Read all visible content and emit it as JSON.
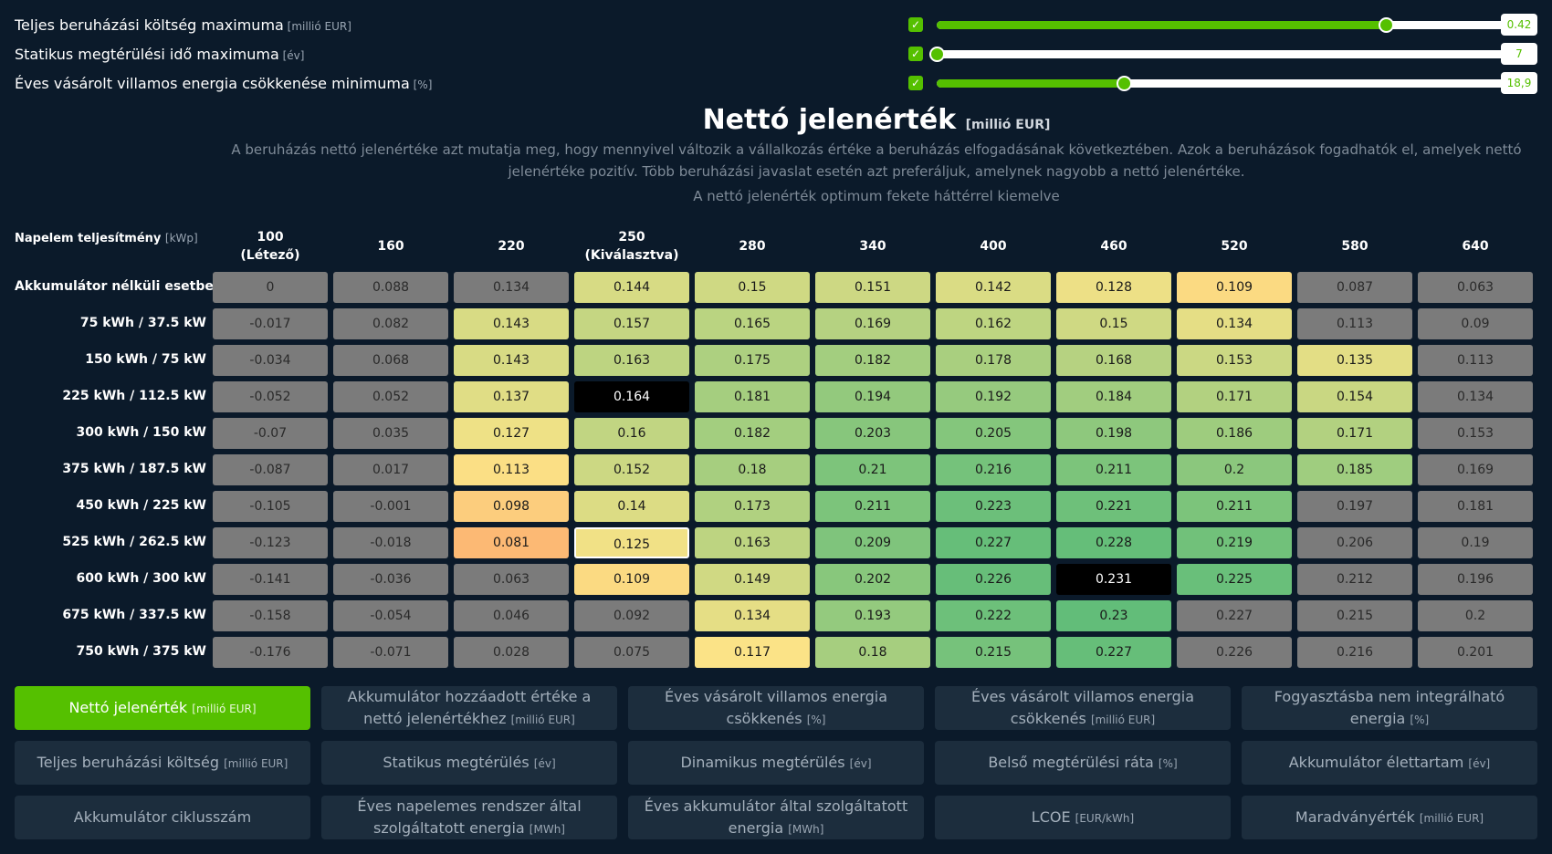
{
  "sliders": [
    {
      "label": "Teljes beruházási költség maximuma",
      "unit": "[millió EUR]",
      "checked": true,
      "fraction": 0.786,
      "value": "0.42"
    },
    {
      "label": "Statikus megtérülési idő maximuma",
      "unit": "[év]",
      "checked": true,
      "fraction": 0.0,
      "value": "7"
    },
    {
      "label": "Éves vásárolt villamos energia csökkenése minimuma",
      "unit": "[%]",
      "checked": true,
      "fraction": 0.327,
      "value": "18,9"
    }
  ],
  "heading": {
    "title": "Nettó jelenérték",
    "unit": "[millió EUR]",
    "description": "A beruházás nettó jelenértéke azt mutatja meg, hogy mennyivel változik a vállalkozás értéke a beruházás elfogadásának következtében. Azok a beruházások fogadhatók el, amelyek nettó jelenértéke pozitív. Több beruházási javaslat esetén azt preferáljuk, amelynek nagyobb a nettó jelenértéke.",
    "note": "A nettó jelenérték optimum fekete háttérrel kiemelve"
  },
  "grid": {
    "axis_label": "Napelem teljesítmény",
    "axis_unit": "[kWp]",
    "columns": [
      {
        "top": "100",
        "bottom": "(Létező)"
      },
      {
        "top": "160",
        "bottom": ""
      },
      {
        "top": "220",
        "bottom": ""
      },
      {
        "top": "250",
        "bottom": "(Kiválasztva)"
      },
      {
        "top": "280",
        "bottom": ""
      },
      {
        "top": "340",
        "bottom": ""
      },
      {
        "top": "400",
        "bottom": ""
      },
      {
        "top": "460",
        "bottom": ""
      },
      {
        "top": "520",
        "bottom": ""
      },
      {
        "top": "580",
        "bottom": ""
      },
      {
        "top": "640",
        "bottom": ""
      }
    ],
    "rows": [
      {
        "label": "Akkumulátor nélküli esetben",
        "values": [
          "0",
          "0.088",
          "0.134",
          "0.144",
          "0.15",
          "0.151",
          "0.142",
          "0.128",
          "0.109",
          "0.087",
          "0.063"
        ]
      },
      {
        "label": "75 kWh / 37.5 kW",
        "values": [
          "-0.017",
          "0.082",
          "0.143",
          "0.157",
          "0.165",
          "0.169",
          "0.162",
          "0.15",
          "0.134",
          "0.113",
          "0.09"
        ]
      },
      {
        "label": "150 kWh / 75 kW",
        "values": [
          "-0.034",
          "0.068",
          "0.143",
          "0.163",
          "0.175",
          "0.182",
          "0.178",
          "0.168",
          "0.153",
          "0.135",
          "0.113"
        ]
      },
      {
        "label": "225 kWh / 112.5 kW",
        "values": [
          "-0.052",
          "0.052",
          "0.137",
          "0.164",
          "0.181",
          "0.194",
          "0.192",
          "0.184",
          "0.171",
          "0.154",
          "0.134"
        ]
      },
      {
        "label": "300 kWh / 150 kW",
        "values": [
          "-0.07",
          "0.035",
          "0.127",
          "0.16",
          "0.182",
          "0.203",
          "0.205",
          "0.198",
          "0.186",
          "0.171",
          "0.153"
        ]
      },
      {
        "label": "375 kWh / 187.5 kW",
        "values": [
          "-0.087",
          "0.017",
          "0.113",
          "0.152",
          "0.18",
          "0.21",
          "0.216",
          "0.211",
          "0.2",
          "0.185",
          "0.169"
        ]
      },
      {
        "label": "450 kWh / 225 kW",
        "values": [
          "-0.105",
          "-0.001",
          "0.098",
          "0.14",
          "0.173",
          "0.211",
          "0.223",
          "0.221",
          "0.211",
          "0.197",
          "0.181"
        ]
      },
      {
        "label": "525 kWh / 262.5 kW",
        "values": [
          "-0.123",
          "-0.018",
          "0.081",
          "0.125",
          "0.163",
          "0.209",
          "0.227",
          "0.228",
          "0.219",
          "0.206",
          "0.19"
        ]
      },
      {
        "label": "600 kWh / 300 kW",
        "values": [
          "-0.141",
          "-0.036",
          "0.063",
          "0.109",
          "0.149",
          "0.202",
          "0.226",
          "0.231",
          "0.225",
          "0.212",
          "0.196"
        ]
      },
      {
        "label": "675 kWh / 337.5 kW",
        "values": [
          "-0.158",
          "-0.054",
          "0.046",
          "0.092",
          "0.134",
          "0.193",
          "0.222",
          "0.23",
          "0.227",
          "0.215",
          "0.2"
        ]
      },
      {
        "label": "750 kWh / 375 kW",
        "values": [
          "-0.176",
          "-0.071",
          "0.028",
          "0.075",
          "0.117",
          "0.18",
          "0.215",
          "0.227",
          "0.226",
          "0.216",
          "0.201"
        ]
      }
    ],
    "colors": {
      "grey": "#7b7b7b",
      "black": "#000000",
      "scale_low": "#fcb873",
      "scale_mid": "#fbe487",
      "scale_high": "#62bd79"
    },
    "grey_cells": [
      [
        0,
        0
      ],
      [
        0,
        1
      ],
      [
        0,
        2
      ],
      [
        0,
        9
      ],
      [
        0,
        10
      ],
      [
        1,
        0
      ],
      [
        1,
        1
      ],
      [
        1,
        9
      ],
      [
        1,
        10
      ],
      [
        2,
        0
      ],
      [
        2,
        1
      ],
      [
        2,
        10
      ],
      [
        3,
        0
      ],
      [
        3,
        1
      ],
      [
        3,
        10
      ],
      [
        4,
        0
      ],
      [
        4,
        1
      ],
      [
        4,
        10
      ],
      [
        5,
        0
      ],
      [
        5,
        1
      ],
      [
        5,
        10
      ],
      [
        6,
        0
      ],
      [
        6,
        1
      ],
      [
        6,
        9
      ],
      [
        6,
        10
      ],
      [
        7,
        0
      ],
      [
        7,
        1
      ],
      [
        7,
        9
      ],
      [
        7,
        10
      ],
      [
        8,
        0
      ],
      [
        8,
        1
      ],
      [
        8,
        2
      ],
      [
        8,
        9
      ],
      [
        8,
        10
      ],
      [
        9,
        0
      ],
      [
        9,
        1
      ],
      [
        9,
        2
      ],
      [
        9,
        3
      ],
      [
        9,
        8
      ],
      [
        9,
        9
      ],
      [
        9,
        10
      ],
      [
        10,
        0
      ],
      [
        10,
        1
      ],
      [
        10,
        2
      ],
      [
        10,
        3
      ],
      [
        10,
        8
      ],
      [
        10,
        9
      ],
      [
        10,
        10
      ]
    ],
    "black_cells": [
      [
        3,
        3
      ],
      [
        8,
        7
      ]
    ],
    "selected_cell": [
      7,
      3
    ]
  },
  "tabs": [
    {
      "label": "Nettó jelenérték",
      "unit": "[millió EUR]",
      "active": true
    },
    {
      "label": "Akkumulátor hozzáadott értéke a nettó jelenértékhez",
      "unit": "[millió EUR]",
      "active": false
    },
    {
      "label": "Éves vásárolt villamos energia csökkenés",
      "unit": "[%]",
      "active": false
    },
    {
      "label": "Éves vásárolt villamos energia csökkenés",
      "unit": "[millió EUR]",
      "active": false
    },
    {
      "label": "Fogyasztásba nem integrálható energia",
      "unit": "[%]",
      "active": false
    },
    {
      "label": "Teljes beruházási költség",
      "unit": "[millió EUR]",
      "active": false
    },
    {
      "label": "Statikus megtérülés",
      "unit": "[év]",
      "active": false
    },
    {
      "label": "Dinamikus megtérülés",
      "unit": "[év]",
      "active": false
    },
    {
      "label": "Belső megtérülési ráta",
      "unit": "[%]",
      "active": false
    },
    {
      "label": "Akkumulátor élettartam",
      "unit": "[év]",
      "active": false
    },
    {
      "label": "Akkumulátor ciklusszám",
      "unit": "",
      "active": false
    },
    {
      "label": "Éves napelemes rendszer által szolgáltatott energia",
      "unit": "[MWh]",
      "active": false
    },
    {
      "label": "Éves akkumulátor által szolgáltatott energia",
      "unit": "[MWh]",
      "active": false
    },
    {
      "label": "LCOE",
      "unit": "[EUR/kWh]",
      "active": false
    },
    {
      "label": "Maradványérték",
      "unit": "[millió EUR]",
      "active": false
    }
  ]
}
